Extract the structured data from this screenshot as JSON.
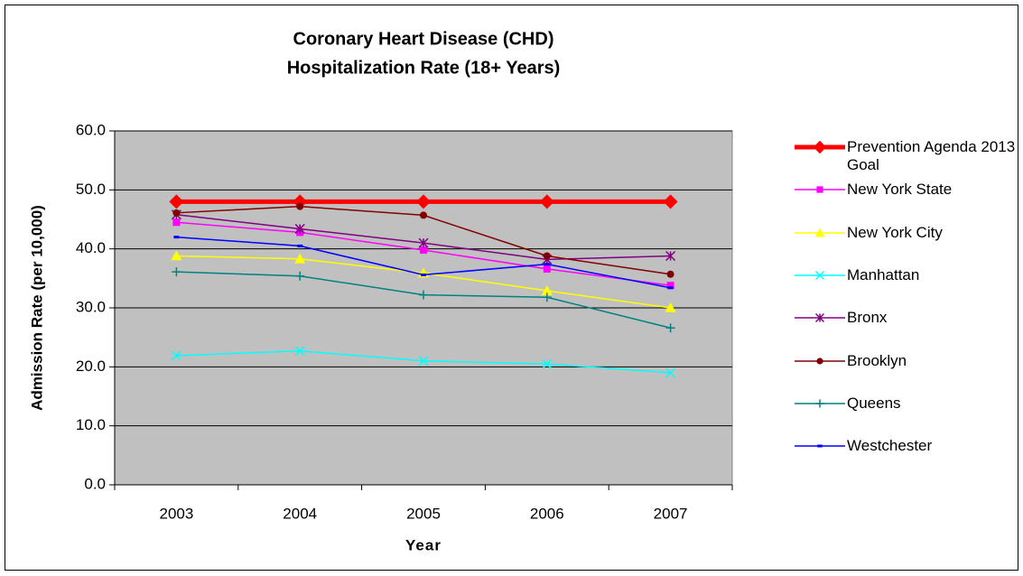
{
  "chart_data": {
    "type": "line",
    "title": [
      "Coronary Heart Disease (CHD)",
      "Hospitalization Rate (18+ Years)"
    ],
    "x_label": "Year",
    "y_label": "Admission Rate (per 10,000)",
    "categories": [
      "2003",
      "2004",
      "2005",
      "2006",
      "2007"
    ],
    "ylim": [
      0,
      60
    ],
    "yticks": [
      {
        "value": 0,
        "label": "0.0"
      },
      {
        "value": 10,
        "label": "10.0"
      },
      {
        "value": 20,
        "label": "20.0"
      },
      {
        "value": 30,
        "label": "30.0"
      },
      {
        "value": 40,
        "label": "40.0"
      },
      {
        "value": 50,
        "label": "50.0"
      },
      {
        "value": 60,
        "label": "60.0"
      }
    ],
    "grid": true,
    "legend": "right",
    "plot_background": "#c0c0c0",
    "series": [
      {
        "name": "Prevention Agenda 2013 Goal",
        "color": "#ff0000",
        "marker": "diamond",
        "line_width": 5,
        "values": [
          48,
          48,
          48,
          48,
          48
        ]
      },
      {
        "name": "New York State",
        "color": "#ff00ff",
        "marker": "square",
        "line_width": 1.5,
        "values": [
          44.5,
          42.8,
          39.8,
          36.6,
          33.8
        ]
      },
      {
        "name": "New York City",
        "color": "#ffff00",
        "marker": "triangle",
        "line_width": 1.5,
        "values": [
          38.8,
          38.3,
          35.9,
          32.9,
          30.0
        ]
      },
      {
        "name": "Manhattan",
        "color": "#00ffff",
        "marker": "x",
        "line_width": 1.5,
        "values": [
          21.9,
          22.7,
          21.0,
          20.5,
          19.0
        ]
      },
      {
        "name": "Bronx",
        "color": "#800080",
        "marker": "star",
        "line_width": 1.5,
        "values": [
          45.8,
          43.4,
          41.0,
          38.2,
          38.8
        ]
      },
      {
        "name": "Brooklyn",
        "color": "#800000",
        "marker": "circle",
        "line_width": 1.5,
        "values": [
          46.1,
          47.2,
          45.7,
          38.8,
          35.7
        ]
      },
      {
        "name": "Queens",
        "color": "#008080",
        "marker": "plus",
        "line_width": 1.5,
        "values": [
          36.1,
          35.4,
          32.2,
          31.8,
          26.6
        ]
      },
      {
        "name": "Westchester",
        "color": "#0000ff",
        "marker": "dash",
        "line_width": 1.5,
        "values": [
          42.0,
          40.5,
          35.6,
          37.4,
          33.4
        ]
      }
    ]
  }
}
